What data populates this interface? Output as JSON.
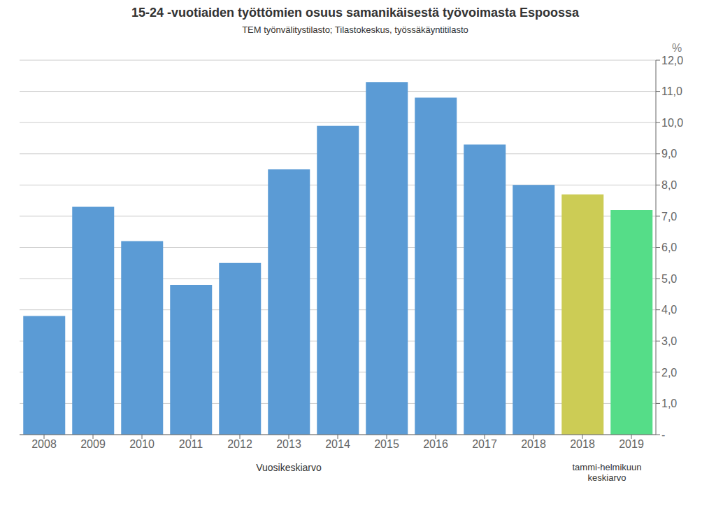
{
  "chart_data": {
    "type": "bar",
    "title": "15-24 -vuotiaiden työttömien osuus samanikäisestä työvoimasta Espoossa",
    "subtitle": "TEM työnvälitystilasto;  Tilastokeskus, työssäkäyntitilasto",
    "ylabel": "%",
    "xlabel": "Vuosikeskiarvo",
    "xlabel2": "tammi-helmikuun\nkeskiarvo",
    "categories": [
      "2008",
      "2009",
      "2010",
      "2011",
      "2012",
      "2013",
      "2014",
      "2015",
      "2016",
      "2017",
      "2018",
      "2018",
      "2019"
    ],
    "values": [
      3.8,
      7.3,
      6.2,
      4.8,
      5.5,
      8.5,
      9.9,
      11.3,
      10.8,
      9.3,
      8.0,
      7.7,
      7.2
    ],
    "colors": [
      "#5B9BD5",
      "#5B9BD5",
      "#5B9BD5",
      "#5B9BD5",
      "#5B9BD5",
      "#5B9BD5",
      "#5B9BD5",
      "#5B9BD5",
      "#5B9BD5",
      "#5B9BD5",
      "#5B9BD5",
      "#CCCC55",
      "#55DD88"
    ],
    "ylim": [
      0,
      12.0
    ],
    "yticks": [
      {
        "value": 0,
        "label": "-"
      },
      {
        "value": 1.0,
        "label": "1,0"
      },
      {
        "value": 2.0,
        "label": "2,0"
      },
      {
        "value": 3.0,
        "label": "3,0"
      },
      {
        "value": 4.0,
        "label": "4,0"
      },
      {
        "value": 5.0,
        "label": "5,0"
      },
      {
        "value": 6.0,
        "label": "6,0"
      },
      {
        "value": 7.0,
        "label": "7,0"
      },
      {
        "value": 8.0,
        "label": "8,0"
      },
      {
        "value": 9.0,
        "label": "9,0"
      },
      {
        "value": 10.0,
        "label": "10,0"
      },
      {
        "value": 11.0,
        "label": "11,0"
      },
      {
        "value": 12.0,
        "label": "12,0"
      }
    ],
    "grid": true
  }
}
